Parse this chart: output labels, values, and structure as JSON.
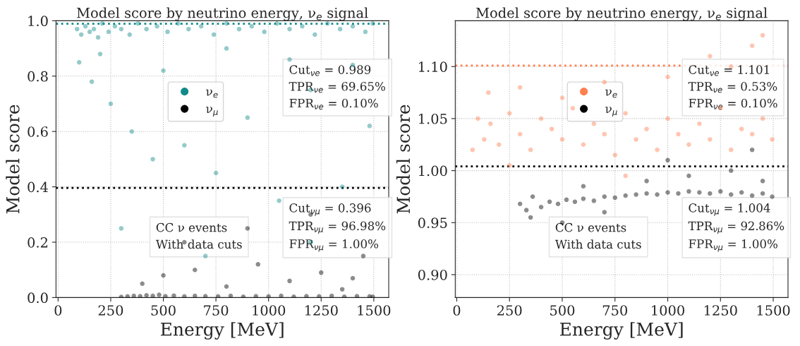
{
  "chart_data": [
    {
      "type": "scatter",
      "title": "Model score by neutrino energy, ν$_{e}$ signal",
      "xlabel": "Energy [MeV]",
      "ylabel": "Model score",
      "xlim": [
        -10,
        1571
      ],
      "xticks": [
        0,
        250,
        500,
        750,
        1000,
        1250,
        1500
      ],
      "ylim": [
        0,
        1
      ],
      "yticks": [
        {
          "value": 0,
          "label": "0.0"
        },
        0.2,
        0.4,
        0.6,
        0.8,
        {
          "value": 1,
          "label": "1.0"
        }
      ],
      "grid": true,
      "legend": "top",
      "marker": "circle",
      "series": [
        {
          "name": "ν$_{e}$",
          "color": "#138a8a",
          "x": [
            90,
            110,
            130,
            150,
            170,
            190,
            210,
            240,
            270,
            300,
            340,
            380,
            420,
            470,
            520,
            570,
            620,
            680,
            740,
            800,
            860,
            920,
            980,
            1040,
            1100,
            1160,
            1220,
            1280,
            1340,
            1400,
            1460,
            1495,
            100,
            160,
            250,
            350,
            450,
            600,
            750,
            900,
            1050,
            1200,
            1350,
            1480,
            200,
            500,
            800,
            1100,
            1400,
            300,
            700,
            1200
          ],
          "values": [
            0.97,
            0.95,
            0.98,
            0.96,
            0.97,
            0.94,
            0.99,
            0.96,
            0.98,
            0.97,
            0.95,
            0.99,
            0.97,
            0.98,
            0.96,
            0.99,
            0.97,
            0.98,
            0.95,
            0.99,
            0.97,
            0.98,
            0.96,
            0.99,
            0.97,
            0.98,
            0.95,
            0.99,
            0.97,
            0.98,
            0.96,
            0.99,
            0.85,
            0.78,
            0.7,
            0.6,
            0.5,
            0.55,
            0.45,
            0.65,
            0.35,
            0.75,
            0.4,
            0.62,
            0.88,
            0.82,
            0.9,
            0.86,
            0.84,
            0.25,
            0.15,
            0.2
          ]
        },
        {
          "name": "ν$_{μ}$",
          "color": "#000000",
          "x": [
            300,
            330,
            360,
            390,
            420,
            450,
            480,
            510,
            550,
            600,
            650,
            700,
            760,
            820,
            880,
            940,
            1000,
            1060,
            1120,
            1180,
            1240,
            1300,
            1360,
            1420,
            1480,
            1495,
            400,
            500,
            650,
            800,
            950,
            1100,
            1250,
            1400,
            1450,
            600,
            900,
            1200,
            1350
          ],
          "values": [
            0.002,
            0.004,
            0.006,
            0.005,
            0.008,
            0.006,
            0.01,
            0.005,
            0.007,
            0.004,
            0.006,
            0.005,
            0.004,
            0.006,
            0.003,
            0.005,
            0.004,
            0.006,
            0.003,
            0.005,
            0.004,
            0.006,
            0.003,
            0.005,
            0.004,
            0.003,
            0.05,
            0.08,
            0.1,
            0.04,
            0.12,
            0.06,
            0.09,
            0.07,
            0.15,
            0.2,
            0.25,
            0.3,
            0.03
          ]
        }
      ],
      "ref_lines": [
        {
          "axis": "y",
          "value": 0.989,
          "color": "#138a8a",
          "line_style": "dotted"
        },
        {
          "axis": "y",
          "value": 0.396,
          "color": "#000000",
          "line_style": "dotted"
        }
      ],
      "annotations": [
        "Cut$_{νe}$ = 0.989\nTPR$_{νe}$ = 69.65%\nFPR$_{νe}$ = 0.10%",
        "Cut$_{νμ}$ = 0.396\nTPR$_{νμ}$ = 96.98%\nFPR$_{νμ}$ = 1.00%",
        "CC ν events\nWith data cuts"
      ]
    },
    {
      "type": "scatter",
      "title": "Model score by neutrino energy, ν$_{e}$ signal",
      "xlabel": "Energy [MeV]",
      "ylabel": "Model score",
      "xlim": [
        -7,
        1570
      ],
      "xticks": [
        0,
        250,
        500,
        750,
        1000,
        1250,
        1500
      ],
      "ylim": [
        0.878,
        1.144
      ],
      "yticks": [
        {
          "value": 0.9,
          "label": "0.90"
        },
        0.95,
        {
          "value": 1,
          "label": "1.00"
        },
        1.05,
        {
          "value": 1.1,
          "label": "1.10"
        }
      ],
      "grid": true,
      "legend": "top",
      "marker": "circle",
      "series": [
        {
          "name": "ν$_{e}$",
          "color": "#ff7f50",
          "x": [
            75,
            100,
            130,
            160,
            200,
            250,
            300,
            350,
            400,
            450,
            500,
            550,
            600,
            650,
            700,
            750,
            800,
            850,
            900,
            950,
            1000,
            1050,
            1100,
            1150,
            1200,
            1250,
            1300,
            1350,
            1400,
            1450,
            1495,
            150,
            300,
            500,
            700,
            1000,
            1200,
            1400,
            1450,
            250,
            800,
            1300
          ],
          "values": [
            1.02,
            1.05,
            1.03,
            1.045,
            1.025,
            1.055,
            1.035,
            1.02,
            1.05,
            1.04,
            1.03,
            1.06,
            1.025,
            1.045,
            1.035,
            1.015,
            1.055,
            1.03,
            1.04,
            1.02,
            1.05,
            1.035,
            1.025,
            1.045,
            1.03,
            1.06,
            1.02,
            1.04,
            1.035,
            1.05,
            1.03,
            1.075,
            1.08,
            1.07,
            1.085,
            1.09,
            1.11,
            1.12,
            1.13,
            1.005,
            0.995,
            1.1
          ]
        },
        {
          "name": "ν$_{μ}$",
          "color": "#000000",
          "x": [
            300,
            330,
            360,
            400,
            440,
            480,
            520,
            560,
            600,
            650,
            700,
            750,
            800,
            850,
            900,
            950,
            1000,
            1050,
            1100,
            1150,
            1200,
            1250,
            1300,
            1350,
            1400,
            1450,
            1495,
            350,
            500,
            700,
            900,
            1100,
            1300,
            1450,
            600,
            1000,
            1400
          ],
          "values": [
            0.968,
            0.962,
            0.975,
            0.965,
            0.97,
            0.968,
            0.972,
            0.97,
            0.973,
            0.971,
            0.975,
            0.974,
            0.976,
            0.977,
            0.978,
            0.977,
            0.979,
            0.978,
            0.98,
            0.979,
            0.978,
            0.98,
            0.977,
            0.979,
            0.976,
            0.978,
            0.975,
            0.955,
            0.95,
            0.96,
            0.99,
            0.995,
            1.0,
            0.99,
            0.985,
            1.01,
            1.02
          ]
        }
      ],
      "ref_lines": [
        {
          "axis": "y",
          "value": 1.101,
          "color": "#ff7f50",
          "line_style": "dotted"
        },
        {
          "axis": "y",
          "value": 1.004,
          "color": "#000000",
          "line_style": "dotted"
        }
      ],
      "annotations": [
        "Cut$_{νe}$ = 1.101\nTPR$_{νe}$ = 0.53%\nFPR$_{νe}$ = 0.10%",
        "Cut$_{νμ}$ = 1.004\nTPR$_{νμ}$ = 92.86%\nFPR$_{νμ}$ = 1.00%",
        "CC ν events\nWith data cuts"
      ]
    }
  ]
}
